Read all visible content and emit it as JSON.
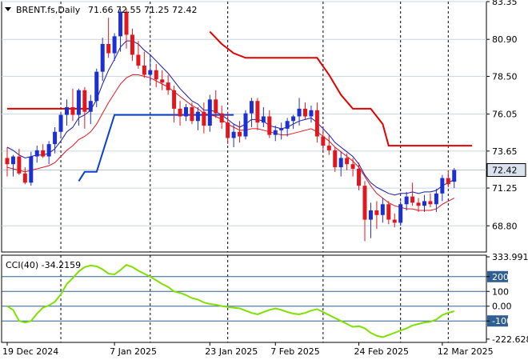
{
  "chart_data": [
    {
      "type": "candlestick",
      "header": {
        "symbol": "BRENT.fs,Daily",
        "ohlc": "71.66 72.55 71.25 72.42"
      },
      "price_axis": {
        "ylim": [
          67.1,
          83.35
        ],
        "ticks": [
          "83.35",
          "80.90",
          "78.50",
          "76.05",
          "73.65",
          "71.25",
          "68.80"
        ],
        "current_price_label": "72.42",
        "current_price": 72.42
      },
      "x_axis_labels": [
        "19 Dec 2024",
        "7 Jan 2025",
        "23 Jan 2025",
        "7 Feb 2025",
        "24 Feb 2025",
        "12 Mar 2025"
      ],
      "x_label_bar_index": [
        0,
        18,
        34,
        45,
        59,
        73
      ],
      "separator_bar_index": [
        9,
        24,
        37,
        53,
        66,
        74
      ],
      "grid": true,
      "colors": {
        "bull_candle": "#1c2fd0",
        "bear_candle": "#e0171e",
        "fast_ma": "#1a1aa8",
        "slow_ma": "#e0171e",
        "stop_red": "#e00000",
        "stop_blue": "#0b3fcf",
        "price_label_bg": "#d9e3ee"
      },
      "candles": [
        [
          73.2,
          73.9,
          72.0,
          72.8
        ],
        [
          72.8,
          73.4,
          72.0,
          73.3
        ],
        [
          73.3,
          73.8,
          72.1,
          72.2
        ],
        [
          72.2,
          72.6,
          71.5,
          71.6
        ],
        [
          71.6,
          73.6,
          71.4,
          73.3
        ],
        [
          73.3,
          74.0,
          72.9,
          73.7
        ],
        [
          73.7,
          74.1,
          73.2,
          73.3
        ],
        [
          73.3,
          74.3,
          72.8,
          74.1
        ],
        [
          74.1,
          75.2,
          73.5,
          74.9
        ],
        [
          74.9,
          76.2,
          74.5,
          76.0
        ],
        [
          76.0,
          77.0,
          75.3,
          76.5
        ],
        [
          76.5,
          77.7,
          75.6,
          76.0
        ],
        [
          76.0,
          77.7,
          75.3,
          77.6
        ],
        [
          77.6,
          77.8,
          75.1,
          76.2
        ],
        [
          76.2,
          77.3,
          75.4,
          76.9
        ],
        [
          76.9,
          79.0,
          76.5,
          78.8
        ],
        [
          78.8,
          81.0,
          78.2,
          80.6
        ],
        [
          80.6,
          82.3,
          79.7,
          80.0
        ],
        [
          80.0,
          81.3,
          79.5,
          81.1
        ],
        [
          81.1,
          82.9,
          80.1,
          82.7
        ],
        [
          82.7,
          82.9,
          80.3,
          81.2
        ],
        [
          81.2,
          81.6,
          79.5,
          79.9
        ],
        [
          79.9,
          80.8,
          79.0,
          79.2
        ],
        [
          79.2,
          80.1,
          78.4,
          78.6
        ],
        [
          78.6,
          79.9,
          78.0,
          78.9
        ],
        [
          78.9,
          79.3,
          77.8,
          78.3
        ],
        [
          78.3,
          78.9,
          77.6,
          78.1
        ],
        [
          78.1,
          78.6,
          77.3,
          77.6
        ],
        [
          77.6,
          77.9,
          75.5,
          76.4
        ],
        [
          76.4,
          76.9,
          75.3,
          75.9
        ],
        [
          75.9,
          76.7,
          75.6,
          76.5
        ],
        [
          76.5,
          76.8,
          75.4,
          75.6
        ],
        [
          75.6,
          76.5,
          75.0,
          76.2
        ],
        [
          76.2,
          76.8,
          74.8,
          75.3
        ],
        [
          75.3,
          77.3,
          74.9,
          77.0
        ],
        [
          77.0,
          77.6,
          75.8,
          76.1
        ],
        [
          76.1,
          76.6,
          75.1,
          75.5
        ],
        [
          75.5,
          76.2,
          74.1,
          74.5
        ],
        [
          74.5,
          75.4,
          73.9,
          74.9
        ],
        [
          74.9,
          75.6,
          74.2,
          74.6
        ],
        [
          74.6,
          76.3,
          74.4,
          76.1
        ],
        [
          76.1,
          77.1,
          75.2,
          76.9
        ],
        [
          76.9,
          77.1,
          75.0,
          75.5
        ],
        [
          75.5,
          76.5,
          75.2,
          75.9
        ],
        [
          75.9,
          76.3,
          74.5,
          74.7
        ],
        [
          74.7,
          75.3,
          74.3,
          75.0
        ],
        [
          75.0,
          75.5,
          74.4,
          75.1
        ],
        [
          75.1,
          75.8,
          74.6,
          75.6
        ],
        [
          75.6,
          76.0,
          75.1,
          75.9
        ],
        [
          75.9,
          77.1,
          75.3,
          76.4
        ],
        [
          76.4,
          76.8,
          75.7,
          75.9
        ],
        [
          75.9,
          76.6,
          75.5,
          76.3
        ],
        [
          76.3,
          76.8,
          74.2,
          74.6
        ],
        [
          74.6,
          75.2,
          73.7,
          74.0
        ],
        [
          74.0,
          74.7,
          73.4,
          73.7
        ],
        [
          73.7,
          73.9,
          72.3,
          72.6
        ],
        [
          72.6,
          73.6,
          72.0,
          73.2
        ],
        [
          73.2,
          73.5,
          72.4,
          72.8
        ],
        [
          72.8,
          73.2,
          72.0,
          72.5
        ],
        [
          72.5,
          72.9,
          71.1,
          71.4
        ],
        [
          71.4,
          71.7,
          67.8,
          69.2
        ],
        [
          69.2,
          70.3,
          68.0,
          69.8
        ],
        [
          69.8,
          70.4,
          68.6,
          69.5
        ],
        [
          69.5,
          70.6,
          69.0,
          70.2
        ],
        [
          70.2,
          70.4,
          68.9,
          69.2
        ],
        [
          69.2,
          69.6,
          68.7,
          69.0
        ],
        [
          69.0,
          70.4,
          68.8,
          70.2
        ],
        [
          70.2,
          71.0,
          69.8,
          70.7
        ],
        [
          70.7,
          71.6,
          70.1,
          70.3
        ],
        [
          70.3,
          70.6,
          69.7,
          70.1
        ],
        [
          70.1,
          70.8,
          69.7,
          70.4
        ],
        [
          70.4,
          70.9,
          70.0,
          70.2
        ],
        [
          70.2,
          71.2,
          69.7,
          70.9
        ],
        [
          70.9,
          72.1,
          70.4,
          71.9
        ],
        [
          71.9,
          72.4,
          71.3,
          71.5
        ],
        [
          71.66,
          72.55,
          71.25,
          72.42
        ]
      ],
      "fast_ma": [
        73.9,
        73.7,
        73.4,
        73.2,
        73.3,
        73.4,
        73.4,
        73.5,
        73.8,
        74.3,
        74.9,
        75.2,
        75.8,
        76.0,
        76.3,
        77.0,
        78.0,
        78.9,
        79.6,
        80.4,
        80.8,
        80.8,
        80.6,
        80.2,
        79.9,
        79.5,
        79.1,
        78.7,
        78.2,
        77.7,
        77.3,
        76.9,
        76.7,
        76.3,
        76.3,
        76.2,
        76.0,
        75.7,
        75.4,
        75.2,
        75.4,
        75.7,
        75.7,
        75.6,
        75.3,
        75.2,
        75.1,
        75.2,
        75.4,
        75.6,
        75.7,
        75.8,
        75.5,
        75.1,
        74.7,
        74.2,
        73.9,
        73.6,
        73.3,
        72.8,
        72.1,
        71.6,
        71.3,
        71.1,
        70.9,
        70.8,
        70.9,
        70.9,
        71.0,
        70.9,
        71.0,
        71.0,
        71.1,
        71.4,
        71.6,
        71.8
      ],
      "slow_ma": [
        72.6,
        72.5,
        72.4,
        72.3,
        72.4,
        72.5,
        72.6,
        72.7,
        72.9,
        73.3,
        73.7,
        74.0,
        74.4,
        74.6,
        74.9,
        75.4,
        76.1,
        76.8,
        77.4,
        78.0,
        78.4,
        78.6,
        78.6,
        78.5,
        78.4,
        78.2,
        78.0,
        77.8,
        77.5,
        77.2,
        76.9,
        76.6,
        76.4,
        76.1,
        76.0,
        75.9,
        75.7,
        75.4,
        75.2,
        75.0,
        75.0,
        75.1,
        75.1,
        75.0,
        74.9,
        74.8,
        74.7,
        74.7,
        74.8,
        74.9,
        75.0,
        75.1,
        74.9,
        74.6,
        74.3,
        73.9,
        73.6,
        73.3,
        73.0,
        72.6,
        72.0,
        71.4,
        70.9,
        70.6,
        70.3,
        70.1,
        70.0,
        69.9,
        69.9,
        69.8,
        69.8,
        69.8,
        69.9,
        70.2,
        70.4,
        70.6
      ],
      "stop_red_segments": [
        {
          "x": [
            0,
            14
          ],
          "y": [
            76.4,
            76.4
          ]
        },
        {
          "x": [
            34,
            36,
            38,
            40,
            52,
            54,
            56,
            58,
            61,
            63,
            64,
            78
          ],
          "y": [
            81.4,
            80.6,
            80.0,
            79.7,
            79.7,
            78.6,
            77.3,
            76.4,
            76.4,
            75.4,
            74.0,
            74.0
          ]
        }
      ],
      "stop_blue_segments": [
        {
          "x": [
            12,
            13,
            13,
            14,
            15,
            18,
            19,
            38
          ],
          "y": [
            71.7,
            72.3,
            72.3,
            72.3,
            72.3,
            76.0,
            76.0,
            76.0
          ]
        }
      ]
    },
    {
      "type": "line",
      "indicator": "CCI",
      "label": "CCI(40) -34.2159",
      "ylim": [
        -245,
        345
      ],
      "ticks": [
        "333.991",
        "200",
        "100",
        "0.00",
        "-100",
        "-222.628"
      ],
      "level_lines": [
        200,
        100,
        0,
        -100
      ],
      "line_color": "#7fe000",
      "values": [
        0,
        -25,
        -100,
        -110,
        -100,
        -50,
        -10,
        5,
        30,
        80,
        150,
        190,
        235,
        265,
        275,
        270,
        250,
        220,
        215,
        245,
        280,
        265,
        240,
        220,
        200,
        175,
        150,
        130,
        100,
        90,
        75,
        55,
        45,
        25,
        15,
        10,
        0,
        -5,
        -10,
        -15,
        -30,
        -45,
        -55,
        -40,
        -25,
        -15,
        -25,
        -40,
        -50,
        -55,
        -45,
        -30,
        -20,
        -40,
        -60,
        -80,
        -100,
        -120,
        -140,
        -135,
        -150,
        -180,
        -200,
        -210,
        -195,
        -180,
        -165,
        -150,
        -130,
        -120,
        -110,
        -105,
        -90,
        -60,
        -45,
        -34
      ]
    }
  ]
}
